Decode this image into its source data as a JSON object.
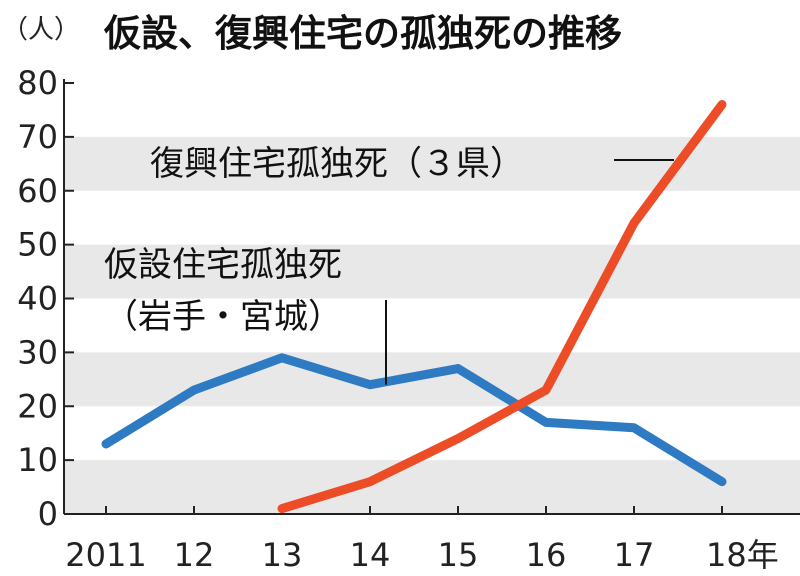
{
  "chart_data": {
    "type": "line",
    "title": "仮設、復興住宅の孤独死の推移",
    "unit": "（人）",
    "x": [
      "2011",
      "12",
      "13",
      "14",
      "15",
      "16",
      "17",
      "18年"
    ],
    "ylim": [
      0,
      80
    ],
    "yticks": [
      0,
      10,
      20,
      30,
      40,
      50,
      60,
      70,
      80
    ],
    "grid": "alternating horizontal bands",
    "series": [
      {
        "name": "仮設住宅孤独死（岩手・宮城）",
        "label_lines": [
          "仮設住宅孤独死",
          "（岩手・宮城）"
        ],
        "color": "#2e7bc4",
        "values": [
          13,
          23,
          29,
          24,
          27,
          17,
          16,
          6
        ]
      },
      {
        "name": "復興住宅孤独死（３県）",
        "label_lines": [
          "復興住宅孤独死（３県）"
        ],
        "color": "#ec4d26",
        "values": [
          null,
          null,
          1,
          6,
          14,
          23,
          54,
          76
        ]
      }
    ]
  }
}
